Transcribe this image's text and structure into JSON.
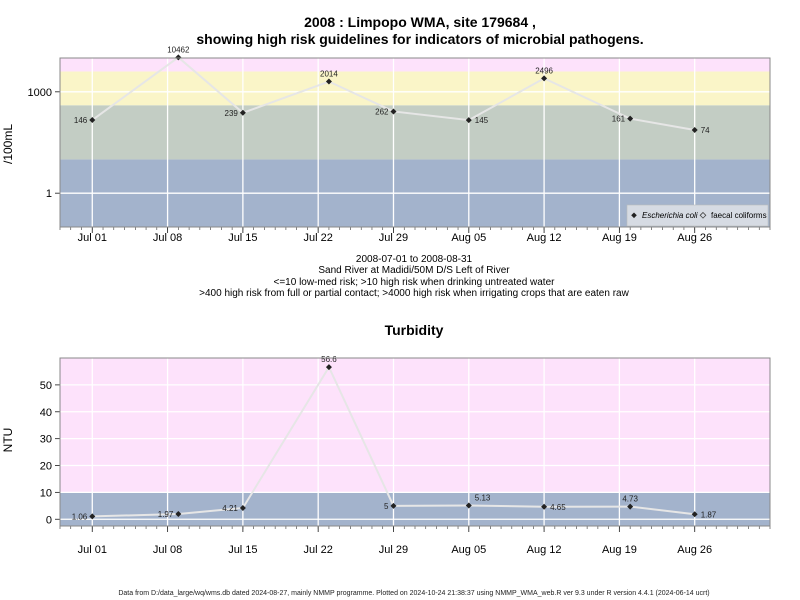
{
  "chart_data": [
    {
      "type": "line",
      "title_lines": [
        "2008 : Limpopo WMA, site 179684 ,",
        "showing high risk guidelines for indicators of microbial pathogens."
      ],
      "ylabel": "/100mL",
      "y_scale": "log",
      "ylim": [
        0.1,
        10000
      ],
      "yticks": [
        {
          "value": 1,
          "label": "1"
        },
        {
          "value": 1000,
          "label": "1000"
        }
      ],
      "xlim": [
        "2008-06-28",
        "2008-09-02"
      ],
      "x_ticks": [
        {
          "date": "2008-07-01",
          "label": "Jul 01"
        },
        {
          "date": "2008-07-08",
          "label": "Jul 08"
        },
        {
          "date": "2008-07-15",
          "label": "Jul 15"
        },
        {
          "date": "2008-07-22",
          "label": "Jul 22"
        },
        {
          "date": "2008-07-29",
          "label": "Jul 29"
        },
        {
          "date": "2008-08-05",
          "label": "Aug 05"
        },
        {
          "date": "2008-08-12",
          "label": "Aug 12"
        },
        {
          "date": "2008-08-19",
          "label": "Aug 19"
        },
        {
          "date": "2008-08-26",
          "label": "Aug 26"
        }
      ],
      "bands": [
        {
          "from": 0.1,
          "to": 10,
          "color": "#a3b3cc"
        },
        {
          "from": 10,
          "to": 400,
          "color": "#c3cdc4"
        },
        {
          "from": 400,
          "to": 4000,
          "color": "#faf5c8"
        },
        {
          "from": 4000,
          "to": 10000,
          "color": "#fde2fb"
        }
      ],
      "series": [
        {
          "name": "Escherichia coli",
          "color": "#222222",
          "line_color": "#e6e6e6",
          "points": [
            {
              "date": "2008-07-01",
              "value": 146,
              "label": "146"
            },
            {
              "date": "2008-07-09",
              "value": 10462,
              "label": "10462"
            },
            {
              "date": "2008-07-15",
              "value": 239,
              "label": "239"
            },
            {
              "date": "2008-07-23",
              "value": 2014,
              "label": "2014"
            },
            {
              "date": "2008-07-29",
              "value": 262,
              "label": "262"
            },
            {
              "date": "2008-08-05",
              "value": 145,
              "label": "145"
            },
            {
              "date": "2008-08-12",
              "value": 2496,
              "label": "2496"
            },
            {
              "date": "2008-08-20",
              "value": 161,
              "label": "161"
            },
            {
              "date": "2008-08-26",
              "value": 74,
              "label": "74"
            }
          ]
        }
      ],
      "legend": {
        "position": "bottom-right",
        "entries": [
          {
            "label": "Escherichia coli",
            "marker": "filled-diamond"
          },
          {
            "label": "faecal coliforms",
            "marker": "open-diamond"
          }
        ]
      },
      "caption_lines": [
        "2008-07-01 to 2008-08-31",
        "Sand River at Madidi/50M D/S Left of River",
        "<=10 low-med risk; >10 high risk when drinking untreated water",
        ">400 high risk from full or partial contact; >4000 high risk when irrigating crops that are eaten raw"
      ],
      "grid": true
    },
    {
      "type": "line",
      "title": "Turbidity",
      "ylabel": "NTU",
      "y_scale": "linear",
      "ylim": [
        -2.5,
        60
      ],
      "yticks": [
        {
          "value": 0,
          "label": "0"
        },
        {
          "value": 10,
          "label": "10"
        },
        {
          "value": 20,
          "label": "20"
        },
        {
          "value": 30,
          "label": "30"
        },
        {
          "value": 40,
          "label": "40"
        },
        {
          "value": 50,
          "label": "50"
        }
      ],
      "xlim": [
        "2008-06-28",
        "2008-09-02"
      ],
      "bands": [
        {
          "from": -2.5,
          "to": 10,
          "color": "#a3b3cc"
        },
        {
          "from": 10,
          "to": 60,
          "color": "#fde2fb"
        }
      ],
      "series": [
        {
          "color": "#222222",
          "line_color": "#e6e6e6",
          "points": [
            {
              "date": "2008-07-01",
              "value": 1.06,
              "label": "1.06"
            },
            {
              "date": "2008-07-09",
              "value": 1.97,
              "label": "1.97"
            },
            {
              "date": "2008-07-15",
              "value": 4.21,
              "label": "4.21"
            },
            {
              "date": "2008-07-23",
              "value": 56.6,
              "label": "56.6"
            },
            {
              "date": "2008-07-29",
              "value": 5,
              "label": "5"
            },
            {
              "date": "2008-08-05",
              "value": 5.13,
              "label": "5.13"
            },
            {
              "date": "2008-08-12",
              "value": 4.65,
              "label": "4.65"
            },
            {
              "date": "2008-08-20",
              "value": 4.73,
              "label": "4.73"
            },
            {
              "date": "2008-08-26",
              "value": 1.87,
              "label": "1.87"
            }
          ]
        }
      ],
      "grid": true
    }
  ],
  "footer": "Data from D:/data_large/wq/wms.db dated 2024-08-27, mainly NMMP programme. Plotted on 2024-10-24 21:38:37 using NMMP_WMA_web.R ver 9.3 under R version 4.4.1 (2024-06-14 ucrt)"
}
